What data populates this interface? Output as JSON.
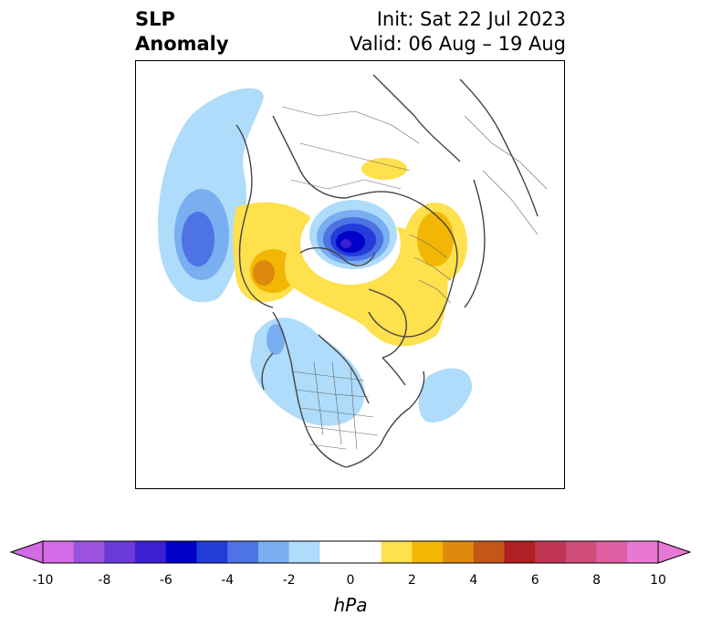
{
  "header": {
    "title_line1": "SLP",
    "title_line2": "Anomaly",
    "init": "Init: Sat 22 Jul 2023",
    "valid": "Valid: 06 Aug – 19 Aug"
  },
  "colorbar": {
    "unit": "hPa",
    "ticks": [
      "-10",
      "-8",
      "-6",
      "-4",
      "-2",
      "0",
      "2",
      "4",
      "6",
      "8",
      "10"
    ],
    "colors": [
      "#d36ae6",
      "#9b52de",
      "#6a3ad8",
      "#3c1fcf",
      "#0000c8",
      "#233cd8",
      "#4d73e4",
      "#79aef0",
      "#aedcfa",
      "#ffffff",
      "#ffffff",
      "#ffe04d",
      "#f2b705",
      "#de8a0e",
      "#c4561a",
      "#b01f24",
      "#c03552",
      "#d04c7a",
      "#de60a2",
      "#e878d4"
    ]
  },
  "map": {
    "projection": "polar-stereographic",
    "region": "Northern Hemisphere / North America",
    "features": [
      "coastlines",
      "country borders",
      "US state borders",
      "Canadian provinces"
    ]
  }
}
